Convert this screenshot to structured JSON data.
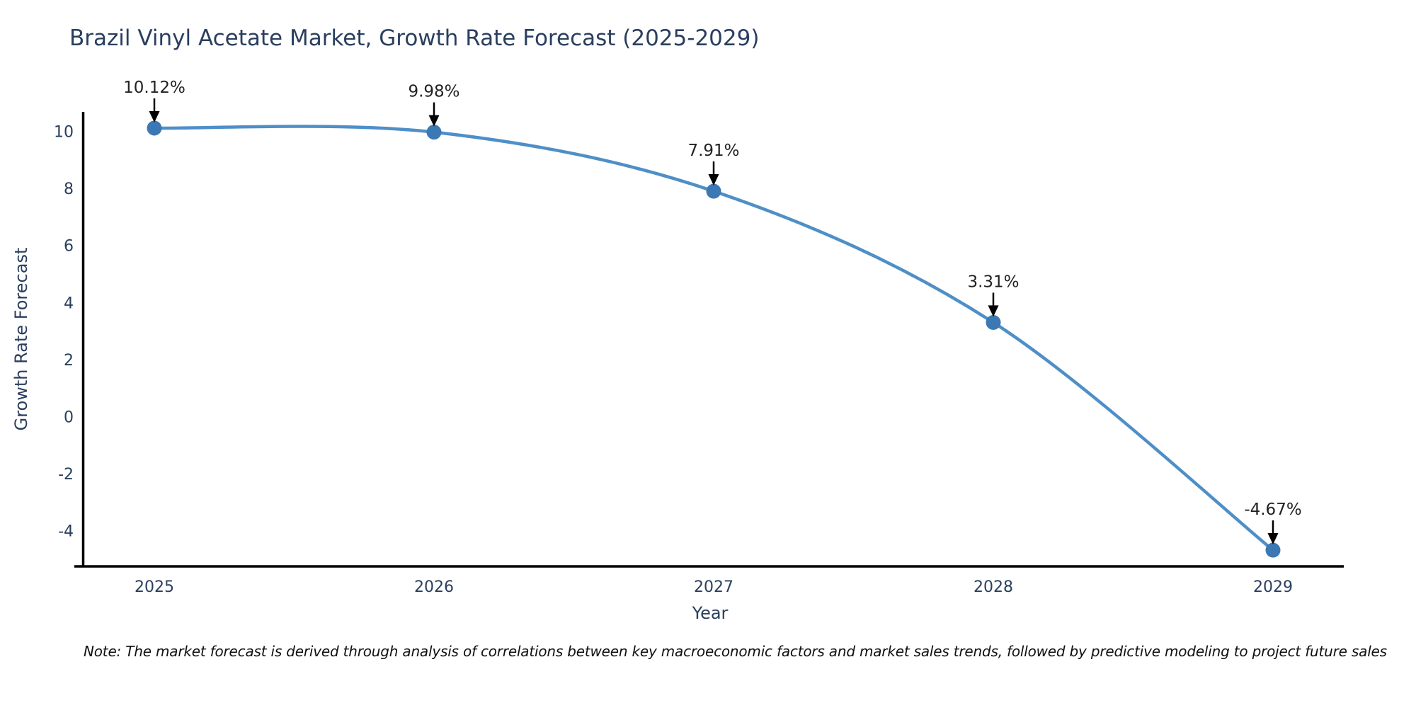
{
  "title": "Brazil Vinyl Acetate Market, Growth Rate Forecast (2025-2029)",
  "note": "Note: The market forecast is derived through analysis of correlations between key macroeconomic factors and market sales trends, followed by predictive modeling to project future sales",
  "chart_data": {
    "type": "line",
    "title": "Brazil Vinyl Acetate Market, Growth Rate Forecast (2025-2029)",
    "xlabel": "Year",
    "ylabel": "Growth Rate Forecast",
    "x": [
      2025,
      2026,
      2027,
      2028,
      2029
    ],
    "series": [
      {
        "name": "Growth Rate Forecast",
        "values": [
          10.12,
          9.98,
          7.91,
          3.31,
          -4.67
        ],
        "point_labels": [
          "10.12%",
          "9.98%",
          "7.91%",
          "3.31%",
          "-4.67%"
        ]
      }
    ],
    "xticks": [
      "2025",
      "2026",
      "2027",
      "2028",
      "2029"
    ],
    "yticks": [
      10,
      8,
      6,
      4,
      2,
      0,
      -2,
      -4
    ],
    "ylim": [
      -5.24,
      10.69
    ],
    "xlim": [
      2024.74,
      2029.25
    ],
    "grid": false,
    "legend_position": "none",
    "line_shape": "spline",
    "annotations_have_arrows": true,
    "colors": {
      "line": "#4e8fc7",
      "marker": "#3c78b3",
      "axis_line": "#000000",
      "tick_label": "#2a3f5f",
      "annotation_text": "#222222",
      "title_text": "#2a3f5f"
    }
  }
}
